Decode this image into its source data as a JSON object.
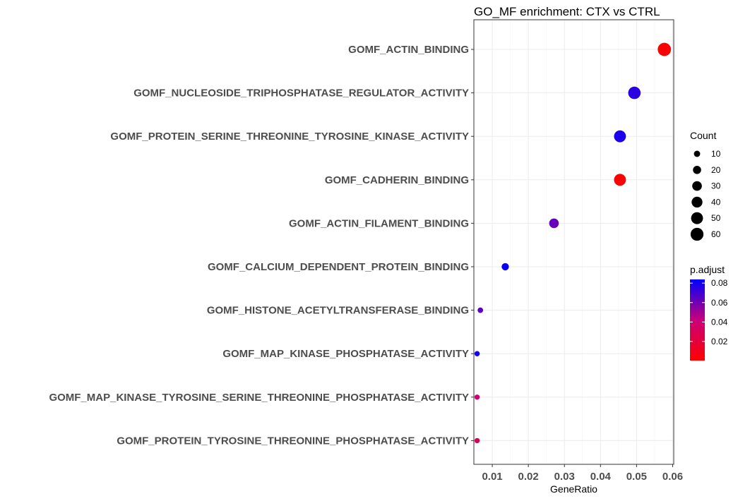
{
  "chart_data": {
    "type": "scatter",
    "title": "GO_MF enrichment: CTX vs CTRL",
    "xlabel": "GeneRatio",
    "ylabel": "",
    "xlim": [
      0.0049,
      0.0603
    ],
    "x_ticks": [
      0.01,
      0.02,
      0.03,
      0.04,
      0.05,
      0.06
    ],
    "x_tick_labels": [
      "0.01",
      "0.02",
      "0.03",
      "0.04",
      "0.05",
      "0.06"
    ],
    "grid": true,
    "categories": [
      "GOMF_ACTIN_BINDING",
      "GOMF_NUCLEOSIDE_TRIPHOSPHATASE_REGULATOR_ACTIVITY",
      "GOMF_PROTEIN_SERINE_THREONINE_TYROSINE_KINASE_ACTIVITY",
      "GOMF_CADHERIN_BINDING",
      "GOMF_ACTIN_FILAMENT_BINDING",
      "GOMF_CALCIUM_DEPENDENT_PROTEIN_BINDING",
      "GOMF_HISTONE_ACETYLTRANSFERASE_BINDING",
      "GOMF_MAP_KINASE_PHOSPHATASE_ACTIVITY",
      "GOMF_MAP_KINASE_TYROSINE_SERINE_THREONINE_PHOSPHATASE_ACTIVITY",
      "GOMF_PROTEIN_TYROSINE_THREONINE_PHOSPHATASE_ACTIVITY"
    ],
    "points": [
      {
        "term": "GOMF_ACTIN_BINDING",
        "gene_ratio": 0.0577,
        "count": 64,
        "p_adjust": 0.0005
      },
      {
        "term": "GOMF_NUCLEOSIDE_TRIPHOSPHATASE_REGULATOR_ACTIVITY",
        "gene_ratio": 0.0494,
        "count": 55,
        "p_adjust": 0.075
      },
      {
        "term": "GOMF_PROTEIN_SERINE_THREONINE_TYROSINE_KINASE_ACTIVITY",
        "gene_ratio": 0.0454,
        "count": 50,
        "p_adjust": 0.078
      },
      {
        "term": "GOMF_CADHERIN_BINDING",
        "gene_ratio": 0.0454,
        "count": 50,
        "p_adjust": 0.0008
      },
      {
        "term": "GOMF_ACTIN_FILAMENT_BINDING",
        "gene_ratio": 0.0271,
        "count": 30,
        "p_adjust": 0.063
      },
      {
        "term": "GOMF_CALCIUM_DEPENDENT_PROTEIN_BINDING",
        "gene_ratio": 0.0136,
        "count": 15,
        "p_adjust": 0.082
      },
      {
        "term": "GOMF_HISTONE_ACETYLTRANSFERASE_BINDING",
        "gene_ratio": 0.0067,
        "count": 7,
        "p_adjust": 0.065
      },
      {
        "term": "GOMF_MAP_KINASE_PHOSPHATASE_ACTIVITY",
        "gene_ratio": 0.0058,
        "count": 6,
        "p_adjust": 0.08
      },
      {
        "term": "GOMF_MAP_KINASE_TYROSINE_SERINE_THREONINE_PHOSPHATASE_ACTIVITY",
        "gene_ratio": 0.0058,
        "count": 6,
        "p_adjust": 0.04
      },
      {
        "term": "GOMF_PROTEIN_TYROSINE_THREONINE_PHOSPHATASE_ACTIVITY",
        "gene_ratio": 0.0058,
        "count": 6,
        "p_adjust": 0.03
      }
    ],
    "size_legend": {
      "title": "Count",
      "values": [
        10,
        20,
        30,
        40,
        50,
        60
      ],
      "labels": [
        "10",
        "20",
        "30",
        "40",
        "50",
        "60"
      ]
    },
    "color_legend": {
      "title": "p.adjust",
      "low_color": "#FF0000",
      "high_color": "#0000FF",
      "range": [
        0.0003,
        0.0838
      ],
      "ticks": [
        0.02,
        0.04,
        0.06,
        0.08
      ],
      "tick_labels": [
        "0.02",
        "0.04",
        "0.06",
        "0.08"
      ]
    },
    "legend_placement": "right"
  }
}
